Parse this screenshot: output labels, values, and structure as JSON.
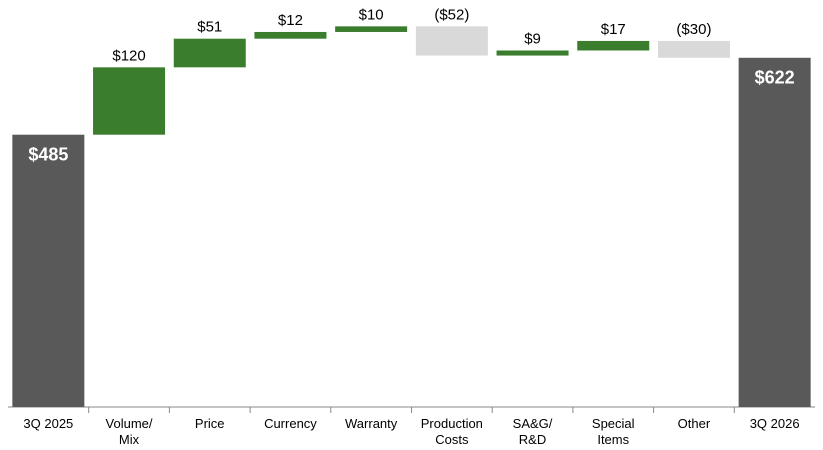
{
  "chart_data": {
    "type": "waterfall",
    "categories": [
      "3Q 2025",
      "Volume/\nMix",
      "Price",
      "Currency",
      "Warranty",
      "Production\nCosts",
      "SA&G/\nR&D",
      "Special\nItems",
      "Other",
      "3Q 2026"
    ],
    "values": [
      485,
      120,
      51,
      12,
      10,
      -52,
      9,
      17,
      -30,
      622
    ],
    "value_labels": [
      "$485",
      "$120",
      "$51",
      "$12",
      "$10",
      "($52)",
      "$9",
      "$17",
      "($30)",
      "$622"
    ],
    "colors": {
      "total": "#595959",
      "increase": "#3a7d2c",
      "decrease": "#d9d9d9"
    },
    "ylim": [
      0,
      700
    ]
  }
}
